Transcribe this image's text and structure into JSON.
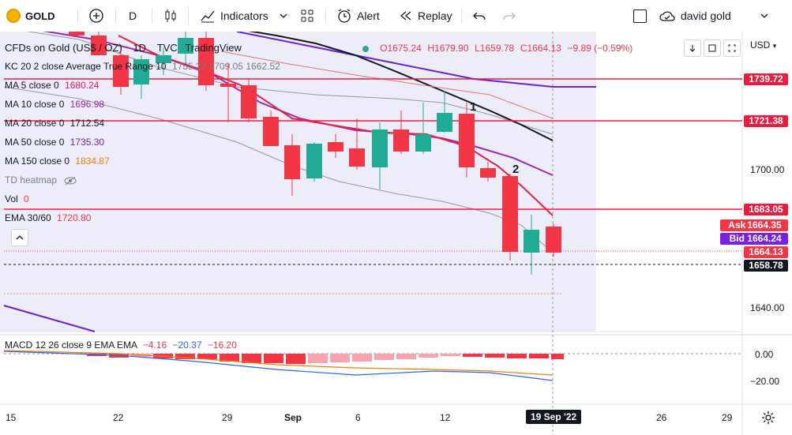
{
  "toolbar": {
    "symbol": "GOLD",
    "interval": "D",
    "indicators_label": "Indicators",
    "alert_label": "Alert",
    "replay_label": "Replay",
    "user_name": "david gold"
  },
  "chart": {
    "title": "CFDs on Gold (US$ / OZ)",
    "interval": "1D",
    "source": "TVC",
    "publisher": "TradingView",
    "ohlc": {
      "o": "O1675.24",
      "h": "H1679.90",
      "l": "L1659.78",
      "c": "C1664.13",
      "chg": "−9.89 (−0.59%)"
    },
    "currency": "USD",
    "kc_label": "KC 20 2 close Average True Range 10",
    "kc_values": "1755.27  1709.05  1662.52",
    "ma": [
      {
        "label": "MA 5 close 0",
        "value": "1680.24",
        "color": "#d81b60"
      },
      {
        "label": "MA 10 close 0",
        "value": "1696.98",
        "color": "#9c27b0"
      },
      {
        "label": "MA 20 close 0",
        "value": "1712.54",
        "color": "#131722"
      },
      {
        "label": "MA 50 close 0",
        "value": "1735.30",
        "color": "#7b1fa2"
      },
      {
        "label": "MA 150 close 0",
        "value": "1834.87",
        "color": "#f57c00"
      }
    ],
    "td_label": "TD heatmap",
    "vol_label": "Vol",
    "vol_value": "0",
    "ema_label": "EMA 30/60",
    "ema_value": "1720.80",
    "annotations": [
      "1",
      "2"
    ],
    "price_tags": [
      {
        "label": "",
        "value": "1739.72",
        "bg": "#e91e3f"
      },
      {
        "label": "",
        "value": "1721.38",
        "bg": "#e91e3f"
      },
      {
        "label": "",
        "value": "1683.05",
        "bg": "#e91e3f"
      },
      {
        "label": "Ask",
        "value": "1664.35",
        "bg": "#f23645"
      },
      {
        "label": "Bid",
        "value": "1664.24",
        "bg": "#7b1fe2"
      },
      {
        "label": "",
        "value": "1664.13",
        "bg": "#f23645"
      },
      {
        "label": "",
        "value": "1658.78",
        "bg": "#131722"
      }
    ],
    "y_axis_labels": [
      "1700.00",
      "1640.00"
    ],
    "x_axis_labels": [
      "15",
      "22",
      "29",
      "Sep",
      "6",
      "12",
      "26",
      "29"
    ],
    "x_axis_current": "19 Sep '22"
  },
  "macd": {
    "label": "MACD 12 26 close 9 EMA EMA",
    "values": [
      "−4.16",
      "−20.37",
      "−16.20"
    ],
    "y_axis_labels": [
      "0.00",
      "−20.00"
    ]
  }
}
